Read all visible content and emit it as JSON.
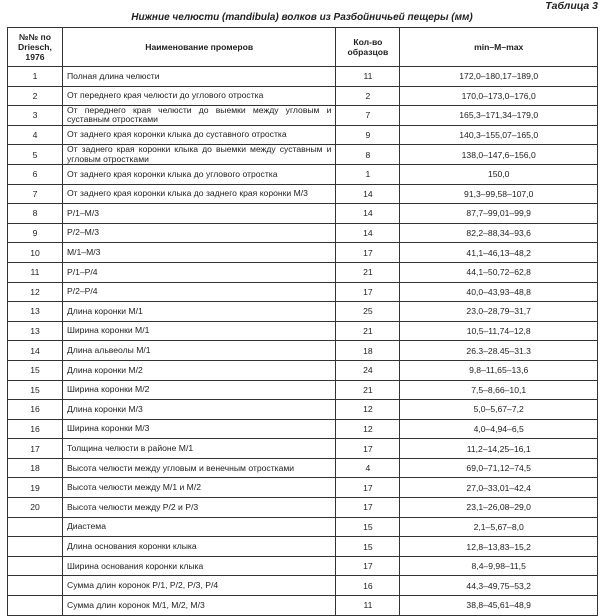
{
  "table_label": "Таблица 3",
  "title": "Нижние челюсти (mandibula) волков из Разбойничьей пещеры (мм)",
  "headers": [
    "№№ по Driesch, 1976",
    "Наименование промеров",
    "Кол-во образцов",
    "min–M–max"
  ],
  "rows": [
    {
      "no": "1",
      "name": "Полная длина челюсти",
      "n": "11",
      "range": "172,0–180,17–189,0"
    },
    {
      "no": "2",
      "name": "От переднего края челюсти до углового отростка",
      "n": "2",
      "range": "170,0–173,0–176,0"
    },
    {
      "no": "3",
      "name": "От переднего края челюсти  до выемки между угловым и суставным отростками",
      "n": "7",
      "range": "165,3–171,34–179,0"
    },
    {
      "no": "4",
      "name": "От заднего края коронки клыка до суставного отростка",
      "n": "9",
      "range": "140,3–155,07–165,0"
    },
    {
      "no": "5",
      "name": "От заднего края коронки клыка до выемки между суставным и угловым отростками",
      "n": "8",
      "range": "138,0–147,6–156,0"
    },
    {
      "no": "6",
      "name": "От заднего края коронки клыка до углового отростка",
      "n": "1",
      "range": "150,0"
    },
    {
      "no": "7",
      "name": "От заднего края коронки клыка до заднего края коронки М/3",
      "n": "14",
      "range": "91,3–99,58–107,0"
    },
    {
      "no": "8",
      "name": "Р/1–М/3",
      "n": "14",
      "range": "87,7–99,01–99,9"
    },
    {
      "no": "9",
      "name": "Р/2–М/3",
      "n": "14",
      "range": "82,2–88,34–93,6"
    },
    {
      "no": "10",
      "name": "М/1–М/3",
      "n": "17",
      "range": "41,1–46,13–48,2"
    },
    {
      "no": "11",
      "name": "Р/1–Р/4",
      "n": "21",
      "range": "44,1–50,72–62,8"
    },
    {
      "no": "12",
      "name": "Р/2–Р/4",
      "n": "17",
      "range": "40,0–43,93–48,8"
    },
    {
      "no": "13",
      "name": "Длина коронки М/1",
      "n": "25",
      "range": "23,0–28,79–31,7"
    },
    {
      "no": "13",
      "name": "Ширина коронки М/1",
      "n": "21",
      "range": "10,5–11,74–12,8"
    },
    {
      "no": "14",
      "name": "Длина альвеолы М/1",
      "n": "18",
      "range": "26.3–28.45–31.3"
    },
    {
      "no": "15",
      "name": "Длина коронки М/2",
      "n": "24",
      "range": "9,8–11,65–13,6"
    },
    {
      "no": "15",
      "name": "Ширина коронки М/2",
      "n": "21",
      "range": "7,5–8,66–10,1"
    },
    {
      "no": "16",
      "name": "Длина коронки М/3",
      "n": "12",
      "range": "5,0–5,67–7,2"
    },
    {
      "no": "16",
      "name": "Ширина коронки М/3",
      "n": "12",
      "range": "4,0–4,94–6,5"
    },
    {
      "no": "17",
      "name": "Толщина челюсти в районе М/1",
      "n": "17",
      "range": "11,2–14,25–16,1"
    },
    {
      "no": "18",
      "name": "Высота челюсти между угловым и венечным отростками",
      "n": "4",
      "range": "69,0–71,12–74,5"
    },
    {
      "no": "19",
      "name": "Высота челюсти между М/1 и М/2",
      "n": "17",
      "range": "27,0–33,01–42,4"
    },
    {
      "no": "20",
      "name": "Высота челюсти между Р/2 и Р/3",
      "n": "17",
      "range": "23,1–26,08–29,0"
    },
    {
      "no": "",
      "name": "Диастема",
      "n": "15",
      "range": "2,1–5,67–8,0"
    },
    {
      "no": "",
      "name": "Длина основания коронки клыка",
      "n": "15",
      "range": "12,8–13,83–15,2"
    },
    {
      "no": "",
      "name": "Ширина основания коронки клыка",
      "n": "17",
      "range": "8,4–9,98–11,5"
    },
    {
      "no": "",
      "name": "Сумма длин коронок  Р/1, Р/2, Р/3, Р/4",
      "n": "16",
      "range": "44,3–49,75–53,2"
    },
    {
      "no": "",
      "name": "Сумма длин коронок М/1, М/2, М/3",
      "n": "11",
      "range": "38,8–45,61–48,9"
    }
  ]
}
